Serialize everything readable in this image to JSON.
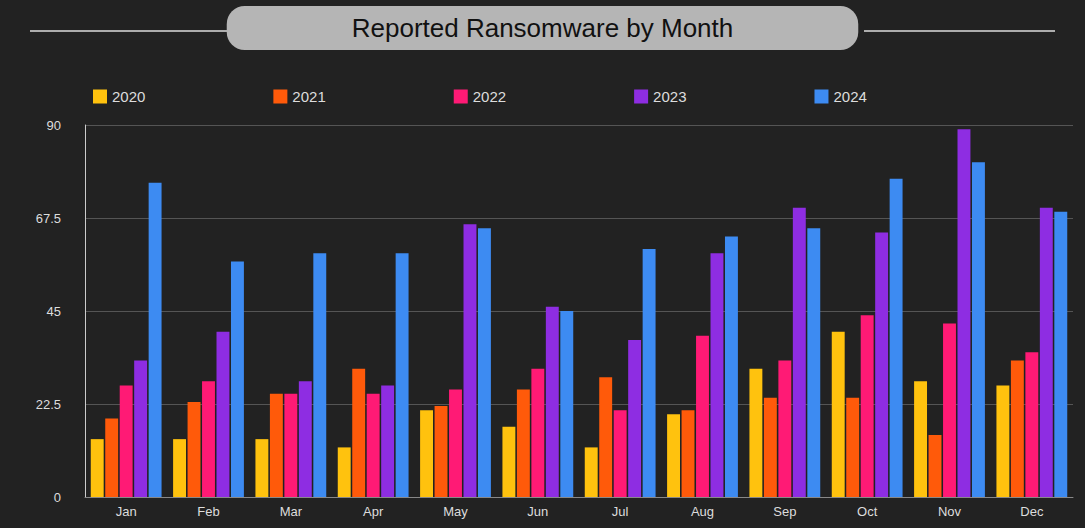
{
  "chart_data": {
    "type": "bar",
    "title": "Reported Ransomware by Month",
    "categories": [
      "Jan",
      "Feb",
      "Mar",
      "Apr",
      "May",
      "Jun",
      "Jul",
      "Aug",
      "Sep",
      "Oct",
      "Nov",
      "Dec"
    ],
    "series": [
      {
        "name": "2020",
        "color": "#ffc20e",
        "values": [
          14,
          14,
          14,
          12,
          21,
          17,
          12,
          20,
          31,
          40,
          28,
          27
        ]
      },
      {
        "name": "2021",
        "color": "#ff5a0a",
        "values": [
          19,
          23,
          25,
          31,
          22,
          26,
          29,
          21,
          24,
          24,
          15,
          33
        ]
      },
      {
        "name": "2022",
        "color": "#ff1a75",
        "values": [
          27,
          28,
          25,
          25,
          26,
          31,
          21,
          39,
          33,
          44,
          42,
          35
        ]
      },
      {
        "name": "2023",
        "color": "#8e2de2",
        "values": [
          33,
          40,
          28,
          27,
          66,
          46,
          38,
          59,
          70,
          64,
          89,
          70
        ]
      },
      {
        "name": "2024",
        "color": "#3d8bf2",
        "values": [
          76,
          57,
          59,
          59,
          65,
          45,
          60,
          63,
          65,
          77,
          81,
          69
        ]
      }
    ],
    "ylim": [
      0,
      90
    ],
    "yticks": [
      0,
      22.5,
      45,
      67.5,
      90
    ],
    "grid": true,
    "legend": "top"
  }
}
